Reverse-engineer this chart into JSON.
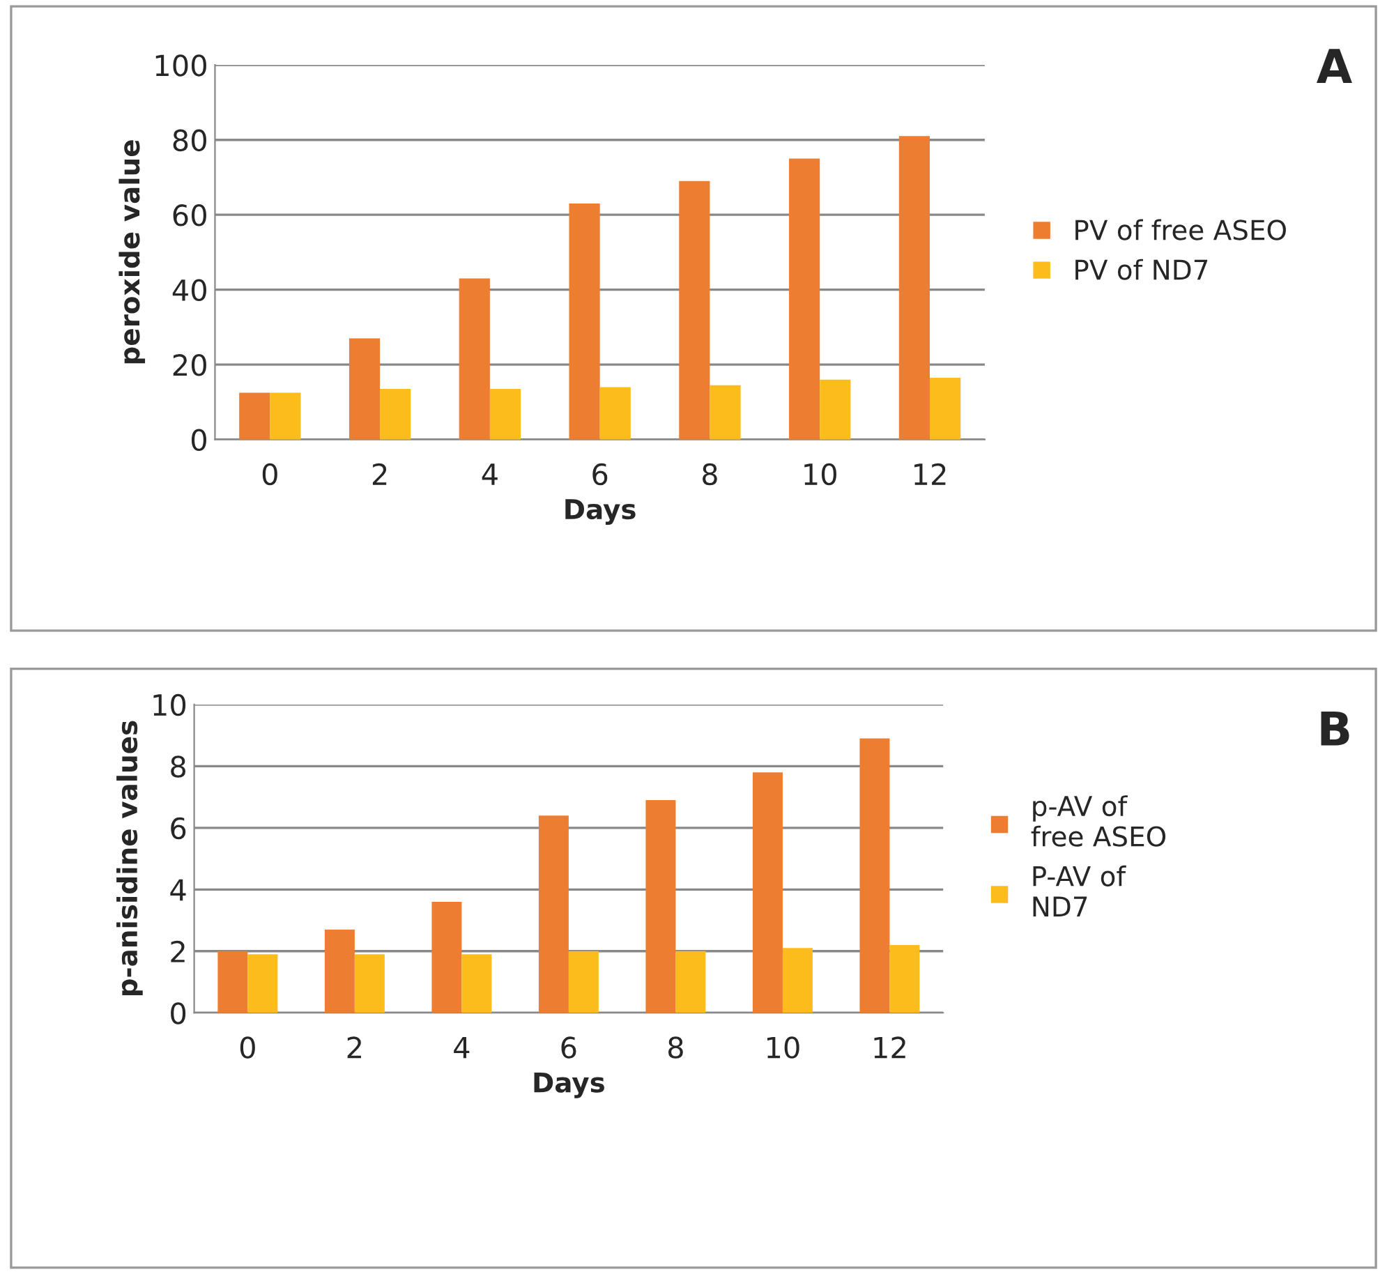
{
  "chart_data": [
    {
      "type": "bar",
      "categories": [
        "0",
        "2",
        "4",
        "6",
        "8",
        "10",
        "12"
      ],
      "xlabel": "Days",
      "ylabel": "peroxide value",
      "ylim": [
        0,
        100
      ],
      "yticks": [
        0,
        20,
        40,
        60,
        80,
        100
      ],
      "grid": "y",
      "legend": "right",
      "annotations": [
        "A"
      ],
      "series": [
        {
          "name": "PV of free ASEO",
          "color": "#ed7d31",
          "values": [
            12.5,
            27,
            43,
            63,
            69,
            75,
            81
          ]
        },
        {
          "name": "PV of ND7",
          "color": "#fbbc1c",
          "values": [
            12.5,
            13.5,
            13.5,
            14,
            14.5,
            16,
            16.5
          ]
        }
      ]
    },
    {
      "type": "bar",
      "categories": [
        "0",
        "2",
        "4",
        "6",
        "8",
        "10",
        "12"
      ],
      "xlabel": "Days",
      "ylabel": "p-anisidine values",
      "ylim": [
        0,
        10
      ],
      "yticks": [
        0,
        2,
        4,
        6,
        8,
        10
      ],
      "grid": "y",
      "legend": "right",
      "annotations": [
        "B"
      ],
      "series": [
        {
          "name": "p-AV of\nfree ASEO",
          "color": "#ed7d31",
          "values": [
            2.0,
            2.7,
            3.6,
            6.4,
            6.9,
            7.8,
            8.9
          ]
        },
        {
          "name": "P-AV of\nND7",
          "color": "#fbbc1c",
          "values": [
            1.9,
            1.9,
            1.9,
            2.0,
            2.0,
            2.1,
            2.2
          ]
        }
      ]
    }
  ]
}
